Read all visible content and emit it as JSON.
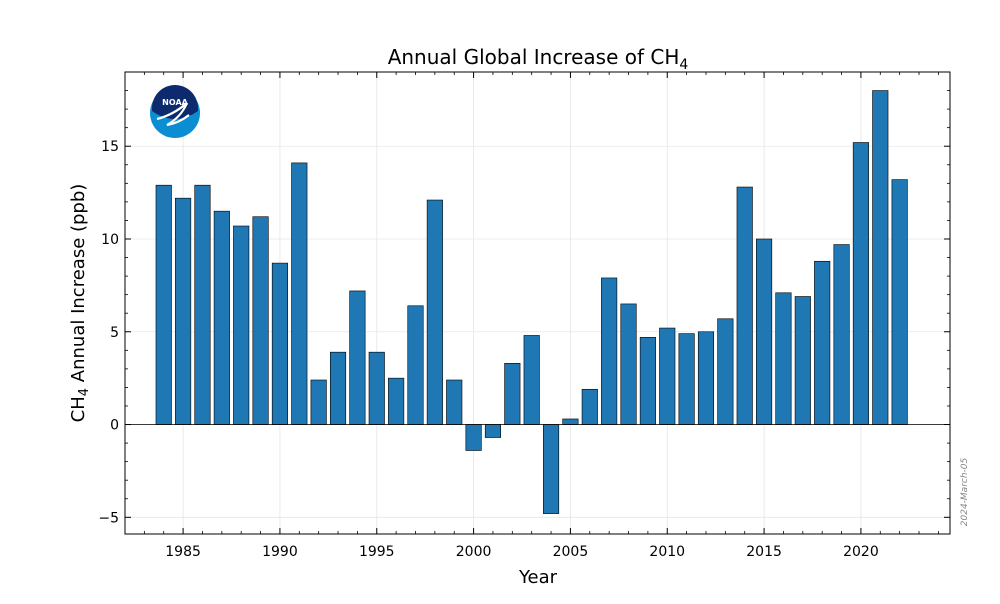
{
  "chart_data": {
    "type": "bar",
    "title_main": "Annual Global Increase of CH",
    "title_sub": "4",
    "xlabel": "Year",
    "ylabel_main_a": "CH",
    "ylabel_sub": "4",
    "ylabel_main_b": " Annual Increase (ppb)",
    "xlim": [
      1982,
      2024.6
    ],
    "ylim": [
      -5.9,
      19.0
    ],
    "xticks": [
      1985,
      1990,
      1995,
      2000,
      2005,
      2010,
      2015,
      2020
    ],
    "yticks": [
      -5,
      0,
      5,
      10,
      15
    ],
    "grid": true,
    "bar_color": "#1f77b4",
    "years": [
      1984,
      1985,
      1986,
      1987,
      1988,
      1989,
      1990,
      1991,
      1992,
      1993,
      1994,
      1995,
      1996,
      1997,
      1998,
      1999,
      2000,
      2001,
      2002,
      2003,
      2004,
      2005,
      2006,
      2007,
      2008,
      2009,
      2010,
      2011,
      2012,
      2013,
      2014,
      2015,
      2016,
      2017,
      2018,
      2019,
      2020,
      2021,
      2022
    ],
    "values": [
      12.9,
      12.2,
      12.9,
      11.5,
      10.7,
      11.2,
      8.7,
      14.1,
      2.4,
      3.9,
      7.2,
      3.9,
      2.5,
      6.4,
      12.1,
      2.4,
      -1.4,
      -0.7,
      3.3,
      4.8,
      -4.8,
      0.3,
      1.9,
      7.9,
      6.5,
      4.7,
      5.2,
      4.9,
      5.0,
      5.7,
      12.8,
      10.0,
      7.1,
      6.9,
      8.8,
      9.7,
      15.2,
      18.0,
      13.2
    ]
  },
  "logo": {
    "text": "NOAA"
  },
  "watermark": "2024-March-05"
}
